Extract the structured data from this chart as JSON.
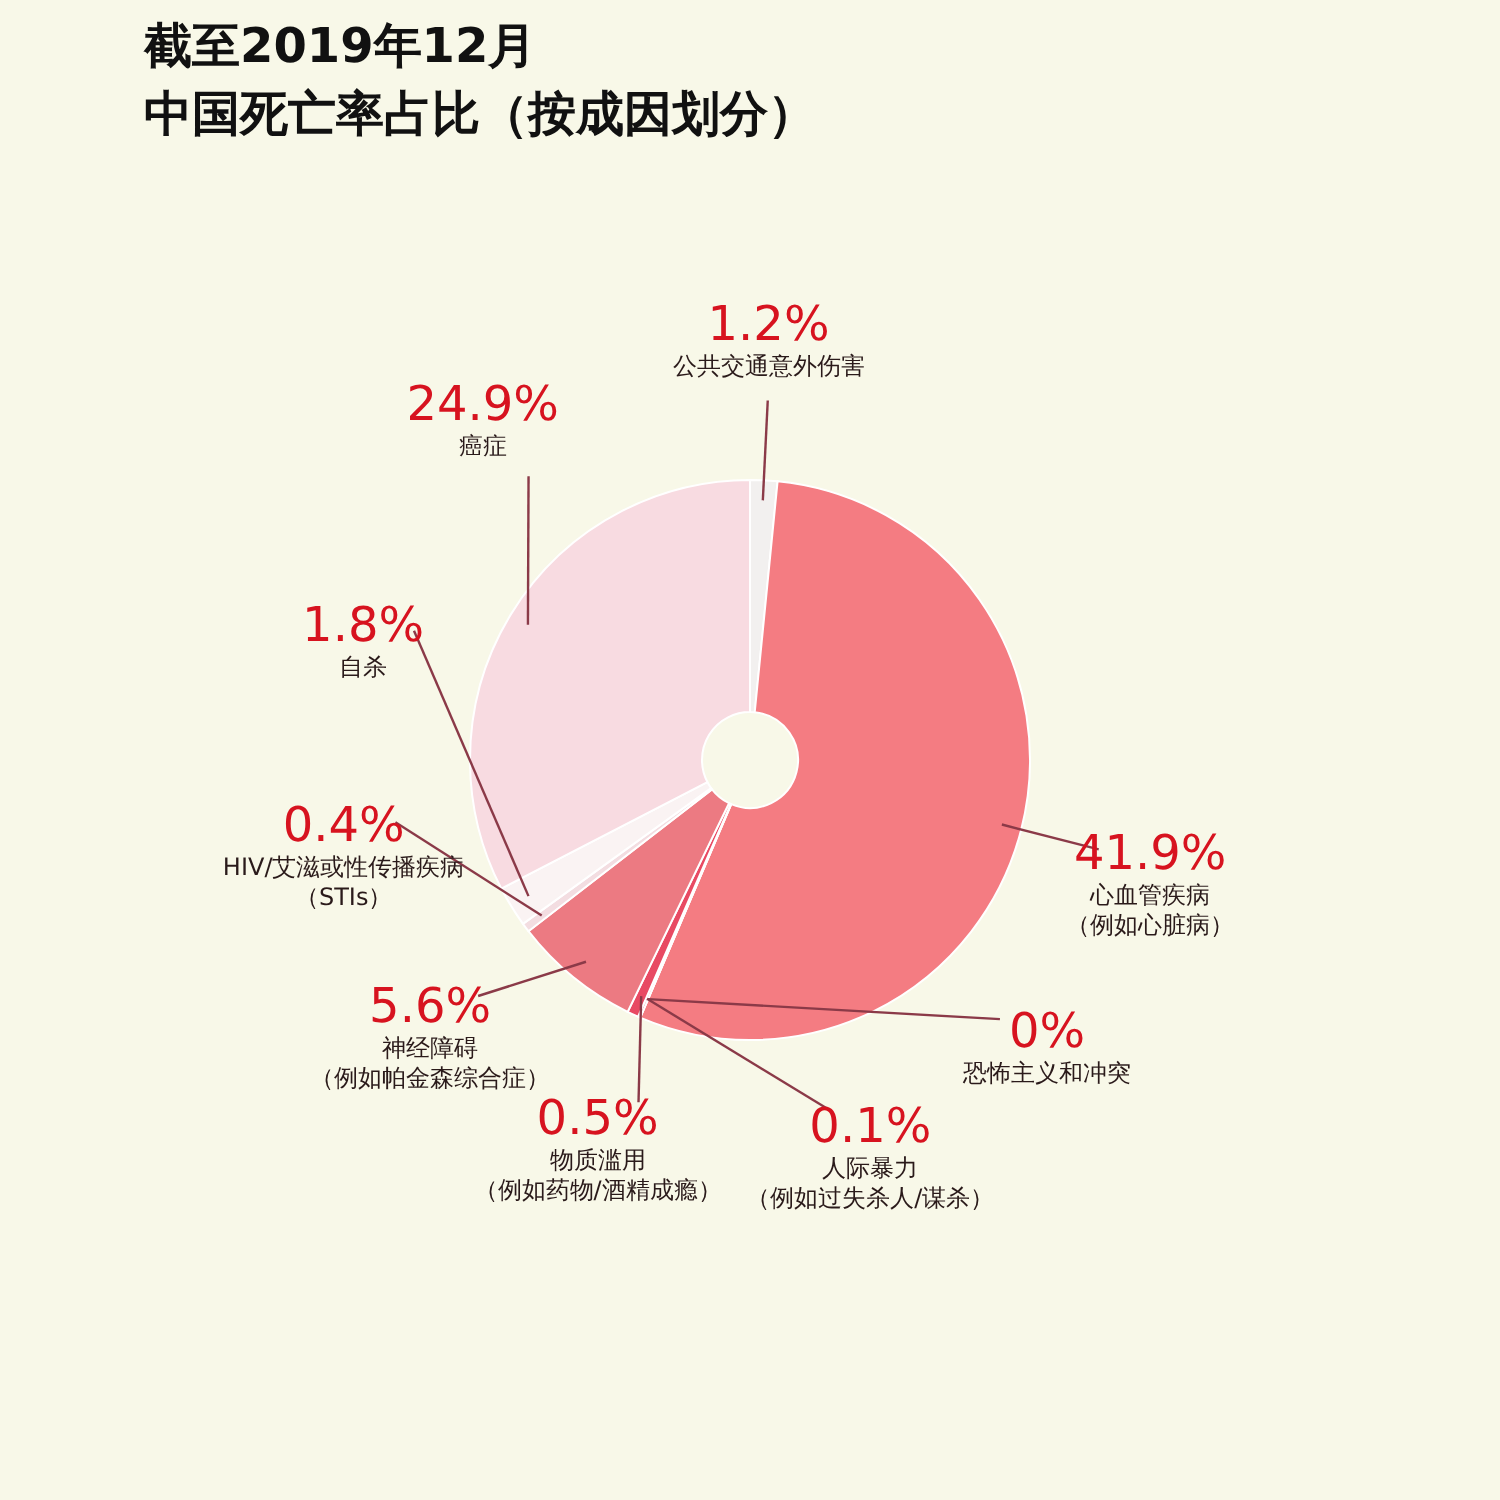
{
  "chart_data": {
    "type": "donut",
    "title": "截至2019年12月",
    "subtitle": "中国死亡率占比（按成因划分）",
    "categories": [
      "公共交通意外伤害",
      "心血管疾病（例如心脏病）",
      "恐怖主义和冲突",
      "人际暴力（例如过失杀人/谋杀）",
      "物质滥用（例如药物/酒精成瘾）",
      "神经障碍（例如帕金森综合症）",
      "HIV/艾滋或性传播疾病（STIs）",
      "自杀",
      "癌症"
    ],
    "values": [
      1.2,
      41.9,
      0,
      0.1,
      0.5,
      5.6,
      0.4,
      1.8,
      24.9
    ],
    "value_labels": [
      "1.2%",
      "41.9%",
      "0%",
      "0.1%",
      "0.5%",
      "5.6%",
      "0.4%",
      "1.8%",
      "24.9%"
    ],
    "colors": [
      "#f2f0ef",
      "#f47c82",
      "#e02a45",
      "#e8405a",
      "#e84a63",
      "#ec7a82",
      "#f3dde1",
      "#faf3f3",
      "#f8dbe1"
    ],
    "legend": false
  }
}
